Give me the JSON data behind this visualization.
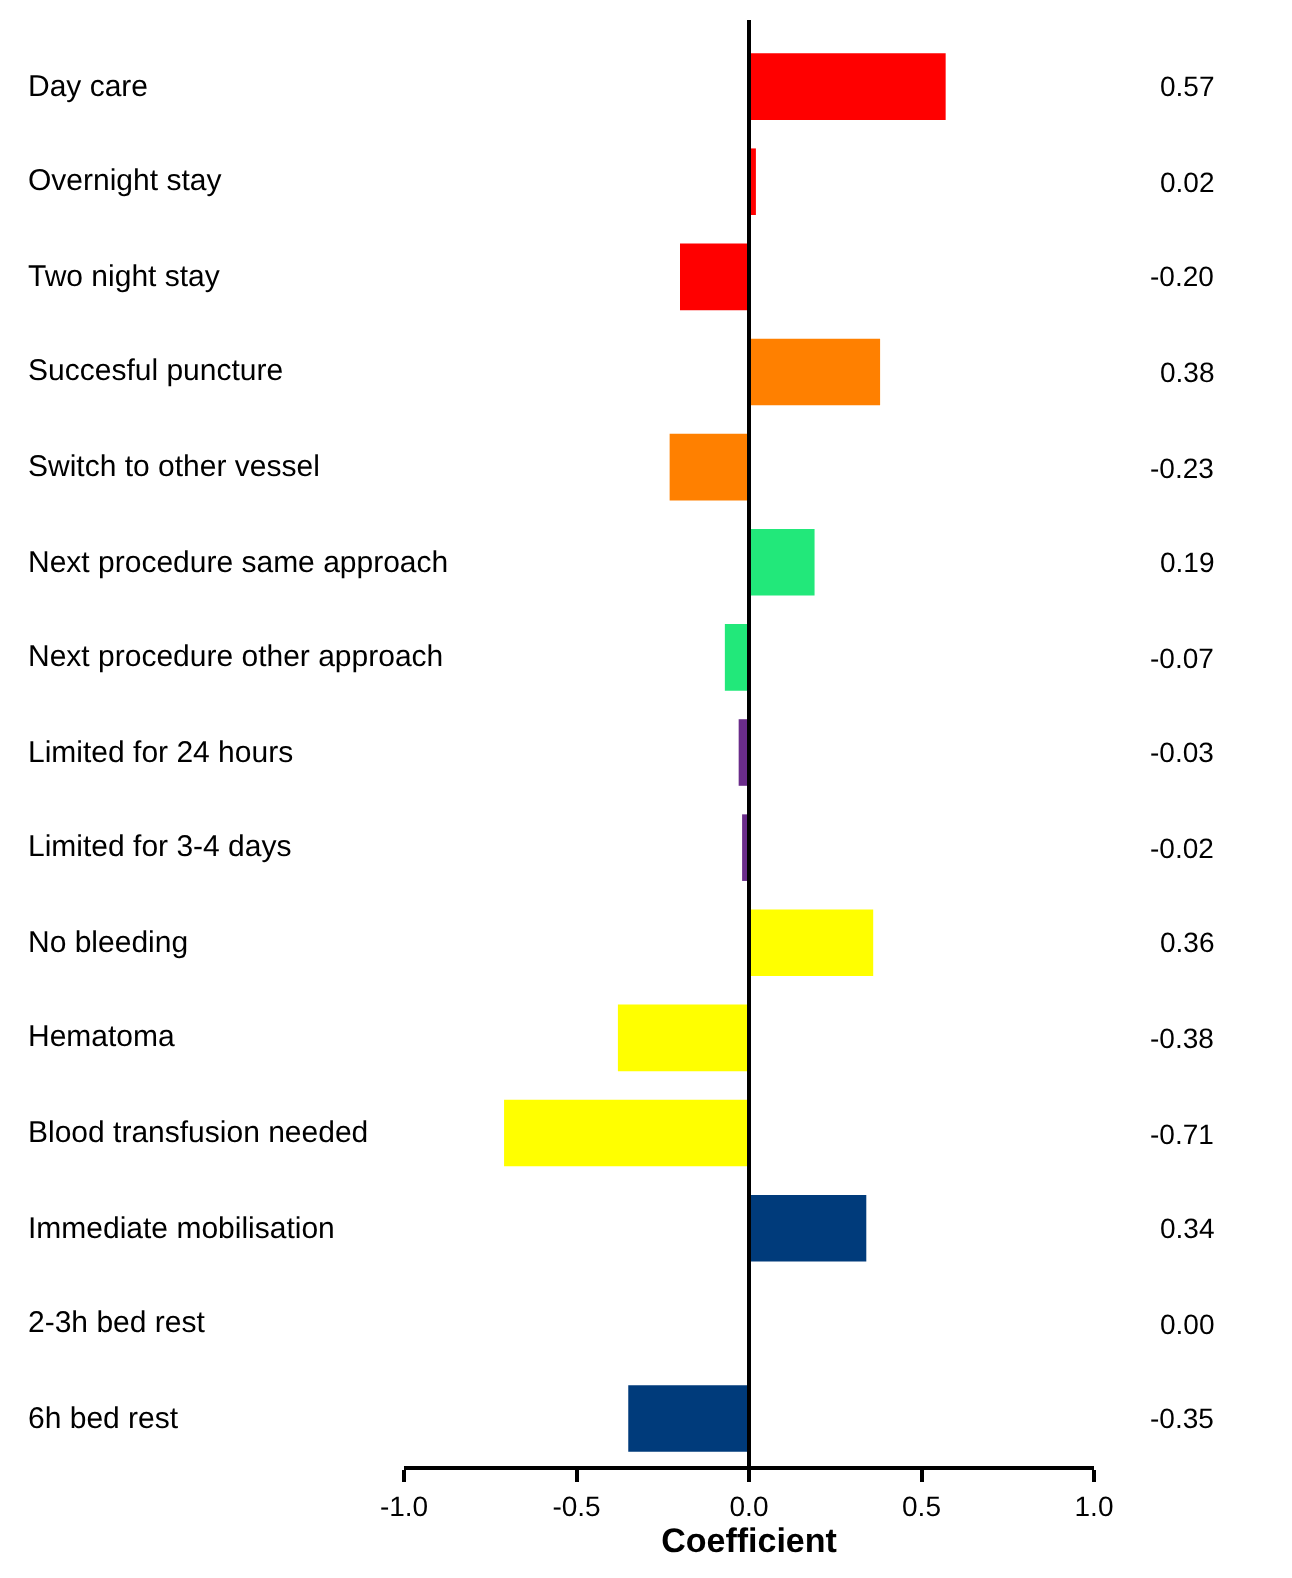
{
  "chart_data": {
    "type": "bar",
    "orientation": "horizontal",
    "xlabel": "Coefficient",
    "categories": [
      "Day care",
      "Overnight stay",
      "Two night stay",
      "Succesful puncture",
      "Switch to other vessel",
      "Next procedure same approach",
      "Next procedure other approach",
      "Limited for 24 hours",
      "Limited for 3-4 days",
      "No bleeding",
      "Hematoma",
      "Blood transfusion needed",
      "Immediate mobilisation",
      "2-3h bed rest",
      "6h bed rest"
    ],
    "values": [
      0.57,
      0.02,
      -0.2,
      0.38,
      -0.23,
      0.19,
      -0.07,
      -0.03,
      -0.02,
      0.36,
      -0.38,
      -0.71,
      0.34,
      0.0,
      -0.35
    ],
    "value_labels": [
      "0.57",
      "0.02",
      "-0.20",
      "0.38",
      "-0.23",
      "0.19",
      "-0.07",
      "-0.03",
      "-0.02",
      "0.36",
      "-0.38",
      "-0.71",
      "0.34",
      "0.00",
      "-0.35"
    ],
    "colors": [
      "#ff0000",
      "#ff0000",
      "#ff0000",
      "#ff8000",
      "#ff8000",
      "#22e87a",
      "#22e87a",
      "#6a2c8a",
      "#6a2c8a",
      "#ffff00",
      "#ffff00",
      "#ffff00",
      "#003b7b",
      "#003b7b",
      "#003b7b"
    ],
    "xlim": [
      -1,
      1
    ],
    "xticks": [
      {
        "value": -1,
        "label": "-1.0"
      },
      {
        "value": -0.5,
        "label": "-0.5"
      },
      {
        "value": 0,
        "label": "0.0"
      },
      {
        "value": 0.5,
        "label": "0.5"
      },
      {
        "value": 1,
        "label": "1.0"
      }
    ],
    "ref_lines": [
      {
        "axis": "x",
        "value": 0,
        "color": "#000000",
        "line_style": "solid"
      }
    ],
    "legend": false
  }
}
